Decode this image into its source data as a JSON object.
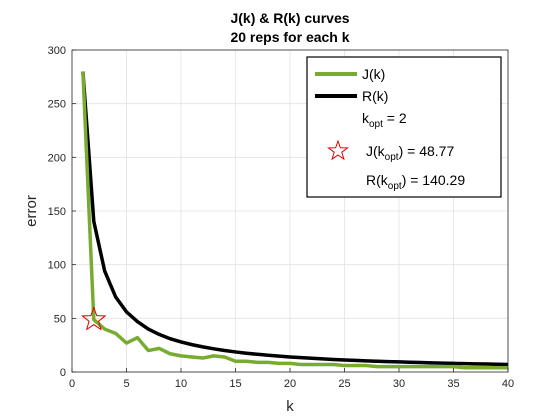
{
  "chart_data": {
    "type": "line",
    "title_lines": [
      "J(k) & R(k) curves",
      "20 reps for each k"
    ],
    "xlabel": "k",
    "ylabel": "error",
    "xlim": [
      0,
      40
    ],
    "ylim": [
      0,
      300
    ],
    "xticks": [
      0,
      5,
      10,
      15,
      20,
      25,
      30,
      35,
      40
    ],
    "yticks": [
      0,
      50,
      100,
      150,
      200,
      250,
      300
    ],
    "grid": true,
    "legend_position": "top-right",
    "series": [
      {
        "name": "J(k)",
        "color": "#77ac30",
        "x": [
          1,
          2,
          3,
          4,
          5,
          6,
          7,
          8,
          9,
          10,
          11,
          12,
          13,
          14,
          15,
          16,
          17,
          18,
          19,
          20,
          21,
          22,
          23,
          24,
          25,
          26,
          27,
          28,
          29,
          30,
          31,
          32,
          33,
          34,
          35,
          36,
          37,
          38,
          39,
          40
        ],
        "y": [
          280,
          48.77,
          40,
          36,
          27,
          32,
          20,
          22,
          17,
          15,
          14,
          13,
          15,
          14,
          10,
          10,
          9,
          9,
          8,
          8,
          7,
          7,
          7,
          7,
          6,
          6,
          6,
          5,
          5,
          5,
          5,
          5,
          5,
          5,
          5,
          4,
          4,
          4,
          4,
          4
        ]
      },
      {
        "name": "R(k)",
        "color": "#000000",
        "x": [
          1,
          2,
          3,
          4,
          5,
          6,
          7,
          8,
          9,
          10,
          11,
          12,
          13,
          14,
          15,
          16,
          17,
          18,
          19,
          20,
          21,
          22,
          23,
          24,
          25,
          26,
          27,
          28,
          29,
          30,
          31,
          32,
          33,
          34,
          35,
          36,
          37,
          38,
          39,
          40
        ],
        "y": [
          280,
          140.29,
          94,
          70,
          56,
          47,
          40,
          35,
          31,
          28,
          25.5,
          23.4,
          21.6,
          20,
          18.7,
          17.5,
          16.5,
          15.6,
          14.8,
          14,
          13.4,
          12.8,
          12.2,
          11.7,
          11.2,
          10.8,
          10.4,
          10,
          9.7,
          9.4,
          9.1,
          8.8,
          8.5,
          8.3,
          8,
          7.8,
          7.6,
          7.4,
          7.2,
          7
        ]
      }
    ],
    "optimum": {
      "k": 2,
      "J": 48.77,
      "R": 140.29,
      "marker": "star",
      "color": "#e00000"
    },
    "legend": {
      "entries": [
        "J(k)",
        "R(k)"
      ],
      "kopt_prefix": "k",
      "kopt_sub": "opt",
      "kopt_value": " = 2",
      "jk_prefix": "J(k",
      "jk_sub": "opt",
      "jk_value": ") = 48.77",
      "rk_prefix": "R(k",
      "rk_sub": "opt",
      "rk_value": ") = 140.29"
    }
  }
}
